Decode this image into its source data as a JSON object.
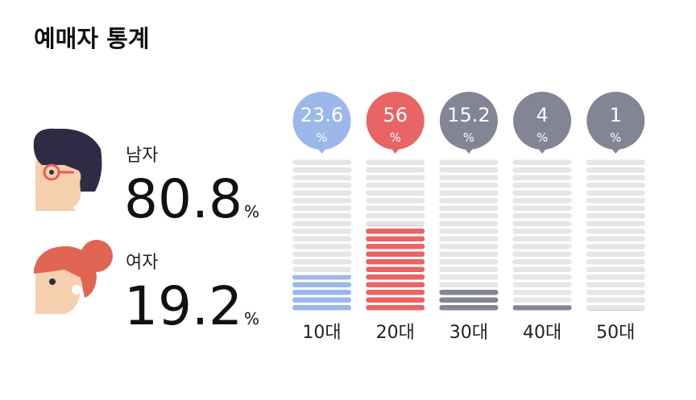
{
  "title": "예매자 통계",
  "chart_data": [
    {
      "type": "gender",
      "categories": [
        "남자",
        "여자"
      ],
      "values": [
        80.8,
        19.2
      ],
      "unit": "%"
    },
    {
      "type": "bar",
      "categories": [
        "10대",
        "20대",
        "30대",
        "40대",
        "50대"
      ],
      "values": [
        23.6,
        56,
        15.2,
        4,
        1
      ],
      "unit": "%",
      "ylim": [
        0,
        100
      ],
      "colors": [
        "#9cb8ea",
        "#e96464",
        "#838595",
        "#838595",
        "#838595"
      ]
    }
  ]
}
